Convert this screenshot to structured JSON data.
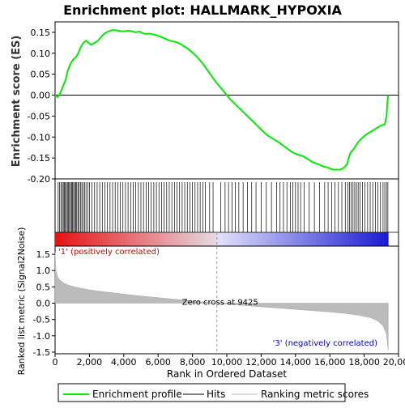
{
  "chart_data": {
    "type": "line",
    "title": "Enrichment plot: HALLMARK_HYPOXIA",
    "xlabel": "Rank in Ordered Dataset",
    "top_panel": {
      "ylabel": "Enrichment score (ES)",
      "ylim": [
        -0.2,
        0.175
      ],
      "yticks": [
        -0.2,
        -0.15,
        -0.1,
        -0.05,
        0.0,
        0.05,
        0.1,
        0.15
      ],
      "ytick_labels": [
        "-0.20",
        "-0.15",
        "-0.10",
        "-0.05",
        "0.00",
        "0.05",
        "0.10",
        "0.15"
      ],
      "series": [
        {
          "name": "Enrichment profile",
          "color": "#00ee00",
          "x": [
            0,
            150,
            300,
            450,
            600,
            750,
            900,
            1050,
            1200,
            1350,
            1500,
            1650,
            1800,
            1950,
            2100,
            2300,
            2500,
            2700,
            2900,
            3100,
            3300,
            3500,
            3700,
            3900,
            4100,
            4300,
            4500,
            4700,
            4900,
            5100,
            5300,
            5500,
            5700,
            5900,
            6100,
            6300,
            6500,
            6700,
            6900,
            7100,
            7300,
            7500,
            7700,
            7900,
            8100,
            8300,
            8500,
            8700,
            8900,
            9100,
            9300,
            9425,
            9600,
            9800,
            10000,
            10200,
            10400,
            10600,
            10800,
            11000,
            11200,
            11400,
            11600,
            11800,
            12000,
            12200,
            12400,
            12600,
            12800,
            13000,
            13200,
            13400,
            13600,
            13800,
            14000,
            14200,
            14400,
            14600,
            14800,
            15000,
            15200,
            15400,
            15600,
            15800,
            16000,
            16200,
            16400,
            16600,
            16800,
            17000,
            17100,
            17200,
            17400,
            17600,
            17800,
            18000,
            18200,
            18400,
            18600,
            18800,
            19000,
            19200,
            19300,
            19350,
            19400
          ],
          "y": [
            0.0,
            -0.005,
            0.005,
            0.02,
            0.035,
            0.06,
            0.075,
            0.085,
            0.09,
            0.1,
            0.115,
            0.125,
            0.13,
            0.125,
            0.12,
            0.125,
            0.13,
            0.14,
            0.148,
            0.152,
            0.155,
            0.155,
            0.154,
            0.152,
            0.153,
            0.154,
            0.152,
            0.15,
            0.152,
            0.148,
            0.146,
            0.147,
            0.145,
            0.143,
            0.14,
            0.137,
            0.133,
            0.13,
            0.128,
            0.126,
            0.122,
            0.117,
            0.112,
            0.105,
            0.098,
            0.09,
            0.08,
            0.07,
            0.058,
            0.046,
            0.035,
            0.028,
            0.02,
            0.01,
            0.0,
            -0.01,
            -0.018,
            -0.026,
            -0.034,
            -0.042,
            -0.05,
            -0.058,
            -0.066,
            -0.074,
            -0.082,
            -0.09,
            -0.097,
            -0.102,
            -0.107,
            -0.112,
            -0.118,
            -0.124,
            -0.13,
            -0.136,
            -0.14,
            -0.143,
            -0.145,
            -0.15,
            -0.155,
            -0.16,
            -0.163,
            -0.166,
            -0.17,
            -0.172,
            -0.175,
            -0.178,
            -0.178,
            -0.178,
            -0.174,
            -0.165,
            -0.15,
            -0.138,
            -0.128,
            -0.115,
            -0.105,
            -0.098,
            -0.092,
            -0.087,
            -0.082,
            -0.077,
            -0.072,
            -0.07,
            -0.05,
            -0.02,
            0.0
          ]
        }
      ]
    },
    "hits_panel": {
      "name": "Hits",
      "hit_ranks": [
        180,
        260,
        340,
        420,
        480,
        540,
        600,
        660,
        720,
        780,
        840,
        900,
        960,
        1020,
        1080,
        1140,
        1200,
        1260,
        1330,
        1400,
        1480,
        1560,
        1640,
        1720,
        1800,
        1900,
        2000,
        2150,
        2300,
        2450,
        2600,
        2750,
        2900,
        3050,
        3200,
        3350,
        3500,
        3650,
        3800,
        3950,
        4100,
        4250,
        4400,
        4550,
        4700,
        4850,
        5000,
        5150,
        5300,
        5450,
        5600,
        5750,
        5900,
        6050,
        6200,
        6350,
        6500,
        6650,
        6800,
        6950,
        7100,
        7250,
        7400,
        7550,
        7700,
        7850,
        8000,
        8150,
        8300,
        8450,
        8600,
        8750,
        9000,
        9200,
        9650,
        9900,
        10100,
        10300,
        10500,
        10700,
        10950,
        11200,
        11450,
        11700,
        12000,
        12300,
        12600,
        12900,
        13100,
        13300,
        13500,
        13700,
        13850,
        14000,
        14150,
        14300,
        14500,
        14800,
        15100,
        15400,
        15700,
        15900,
        16100,
        16300,
        16500,
        16700,
        16900,
        17050,
        17150,
        17250,
        17350,
        17450,
        17550,
        17650,
        17750,
        17900,
        18050,
        18200,
        18350,
        18500,
        18650,
        18800,
        18950,
        19100,
        19200,
        19300,
        19380
      ]
    },
    "rank_panel": {
      "name": "Ranking metric scores",
      "ylabel": "Ranked list metric (Signal2Noise)",
      "ylim": [
        -1.55,
        1.75
      ],
      "yticks": [
        -1.5,
        -1.0,
        -0.5,
        0.0,
        0.5,
        1.0,
        1.5
      ],
      "ytick_labels": [
        "-1.5",
        "-1.0",
        "-0.5",
        "0.0",
        "0.5",
        "1.0",
        "1.5"
      ],
      "x": [
        0,
        50,
        150,
        300,
        500,
        800,
        1200,
        2000,
        3000,
        4000,
        5000,
        6000,
        7000,
        8000,
        9000,
        9425,
        10000,
        11000,
        12000,
        13000,
        14000,
        15000,
        16000,
        17000,
        17800,
        18400,
        18800,
        19100,
        19300,
        19400
      ],
      "values": [
        1.55,
        1.0,
        0.8,
        0.7,
        0.62,
        0.55,
        0.49,
        0.41,
        0.34,
        0.28,
        0.22,
        0.17,
        0.12,
        0.07,
        0.02,
        0.0,
        -0.03,
        -0.07,
        -0.11,
        -0.15,
        -0.19,
        -0.23,
        -0.27,
        -0.32,
        -0.38,
        -0.45,
        -0.55,
        -0.7,
        -0.95,
        -1.45
      ],
      "zero_cross_label": "Zero cross at 9425",
      "zero_cross_rank": 9425,
      "pos_label": "'1' (positively correlated)",
      "neg_label": "'3' (negatively correlated)",
      "pos_color": "#dd0000",
      "neg_color": "#0000cc"
    },
    "xlim": [
      0,
      20000
    ],
    "xticks": [
      0,
      2000,
      4000,
      6000,
      8000,
      10000,
      12000,
      14000,
      16000,
      18000,
      20000
    ],
    "xtick_labels": [
      "0",
      "2,000",
      "4,000",
      "6,000",
      "8,000",
      "10,000",
      "12,000",
      "14,000",
      "16,000",
      "18,000",
      "20,000"
    ],
    "dataset_size": 19400,
    "legend": {
      "placement": "bottom",
      "items": [
        {
          "label": "Enrichment profile",
          "color": "#00ee00"
        },
        {
          "label": "Hits",
          "color": "#000000"
        },
        {
          "label": "Ranking metric scores",
          "color": "#bbbbbb"
        }
      ]
    },
    "grid": false
  }
}
